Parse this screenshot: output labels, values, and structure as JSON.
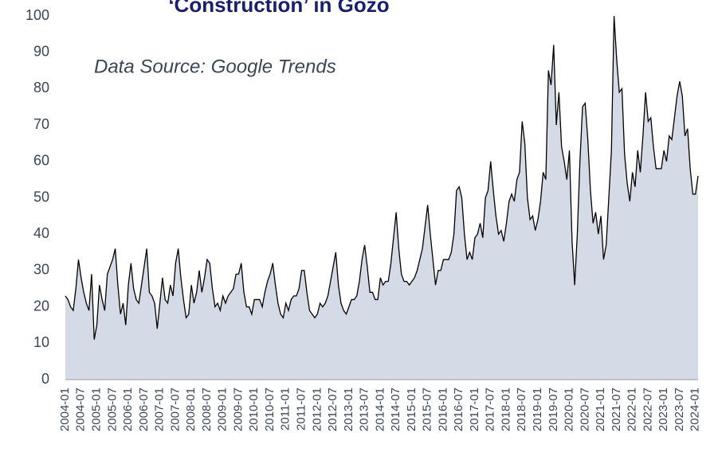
{
  "chart_data": {
    "type": "area",
    "title": "‘Construction’ in Gozo",
    "subtitle": "Data Source: Google Trends",
    "color": "#d5dbe6",
    "line_color": "#000000",
    "ylim": [
      0,
      100
    ],
    "yticks": [
      0,
      10,
      20,
      30,
      40,
      50,
      60,
      70,
      80,
      90,
      100
    ],
    "categories": [
      "2004-01",
      null,
      null,
      null,
      null,
      null,
      "2004-07",
      null,
      null,
      null,
      null,
      null,
      "2005-01",
      null,
      null,
      null,
      null,
      null,
      "2005-07",
      null,
      null,
      null,
      null,
      null,
      "2006-01",
      null,
      null,
      null,
      null,
      null,
      "2006-07",
      null,
      null,
      null,
      null,
      null,
      "2007-01",
      null,
      null,
      null,
      null,
      null,
      "2007-07",
      null,
      null,
      null,
      null,
      null,
      "2008-01",
      null,
      null,
      null,
      null,
      null,
      "2008-07",
      null,
      null,
      null,
      null,
      null,
      "2009-01",
      null,
      null,
      null,
      null,
      null,
      "2009-07",
      null,
      null,
      null,
      null,
      null,
      "2010-01",
      null,
      null,
      null,
      null,
      null,
      "2010-07",
      null,
      null,
      null,
      null,
      null,
      "2011-01",
      null,
      null,
      null,
      null,
      null,
      "2011-07",
      null,
      null,
      null,
      null,
      null,
      "2012-01",
      null,
      null,
      null,
      null,
      null,
      "2012-07",
      null,
      null,
      null,
      null,
      null,
      "2013-01",
      null,
      null,
      null,
      null,
      null,
      "2013-07",
      null,
      null,
      null,
      null,
      null,
      "2014-01",
      null,
      null,
      null,
      null,
      null,
      "2014-07",
      null,
      null,
      null,
      null,
      null,
      "2015-01",
      null,
      null,
      null,
      null,
      null,
      "2015-07",
      null,
      null,
      null,
      null,
      null,
      "2016-01",
      null,
      null,
      null,
      null,
      null,
      "2016-07",
      null,
      null,
      null,
      null,
      null,
      "2017-01",
      null,
      null,
      null,
      null,
      null,
      "2017-07",
      null,
      null,
      null,
      null,
      null,
      "2018-01",
      null,
      null,
      null,
      null,
      null,
      "2018-07",
      null,
      null,
      null,
      null,
      null,
      "2019-01",
      null,
      null,
      null,
      null,
      null,
      "2019-07",
      null,
      null,
      null,
      null,
      null,
      "2020-01",
      null,
      null,
      null,
      null,
      null,
      "2020-07",
      null,
      null,
      null,
      null,
      null,
      "2021-01",
      null,
      null,
      null,
      null,
      null,
      "2021-07",
      null,
      null,
      null,
      null,
      null,
      "2022-01",
      null,
      null,
      null,
      null,
      null,
      "2022-07",
      null,
      null,
      null,
      null,
      null,
      "2023-01",
      null,
      null,
      null,
      null,
      null,
      "2023-07",
      null,
      null,
      null,
      null,
      null,
      "2024-01",
      null
    ],
    "values": [
      23,
      22,
      20,
      19,
      25,
      33,
      28,
      24,
      21,
      19,
      29,
      11,
      15,
      26,
      22,
      19,
      29,
      31,
      33,
      36,
      26,
      18,
      21,
      15,
      26,
      32,
      25,
      22,
      21,
      26,
      31,
      36,
      24,
      23,
      21,
      14,
      21,
      28,
      22,
      21,
      26,
      23,
      32,
      36,
      28,
      22,
      17,
      18,
      26,
      21,
      24,
      30,
      24,
      28,
      33,
      32,
      25,
      20,
      21,
      19,
      23,
      21,
      23,
      24,
      25,
      29,
      29,
      32,
      24,
      20,
      20,
      18,
      22,
      22,
      22,
      20,
      24,
      27,
      29,
      32,
      26,
      21,
      18,
      17,
      21,
      19,
      22,
      23,
      23,
      25,
      30,
      30,
      24,
      19,
      18,
      17,
      18,
      21,
      20,
      21,
      23,
      27,
      31,
      35,
      26,
      21,
      19,
      18,
      20,
      22,
      22,
      23,
      27,
      33,
      37,
      31,
      24,
      24,
      22,
      22,
      28,
      26,
      27,
      27,
      32,
      39,
      46,
      36,
      29,
      27,
      27,
      26,
      27,
      28,
      30,
      33,
      36,
      42,
      48,
      40,
      33,
      26,
      30,
      30,
      33,
      33,
      33,
      35,
      40,
      52,
      53,
      50,
      40,
      33,
      35,
      33,
      39,
      40,
      43,
      39,
      50,
      52,
      60,
      52,
      45,
      40,
      41,
      38,
      43,
      49,
      51,
      49,
      55,
      57,
      71,
      65,
      50,
      44,
      45,
      41,
      44,
      49,
      57,
      55,
      85,
      81,
      92,
      70,
      79,
      64,
      60,
      55,
      63,
      38,
      26,
      40,
      60,
      75,
      76,
      66,
      52,
      43,
      46,
      40,
      45,
      33,
      37,
      50,
      63,
      100,
      88,
      79,
      80,
      62,
      54,
      49,
      57,
      53,
      63,
      57,
      67,
      79,
      71,
      72,
      64,
      58,
      58,
      58,
      63,
      60,
      67,
      66,
      72,
      78,
      82,
      78,
      67,
      69,
      58,
      51,
      51,
      56
    ]
  }
}
